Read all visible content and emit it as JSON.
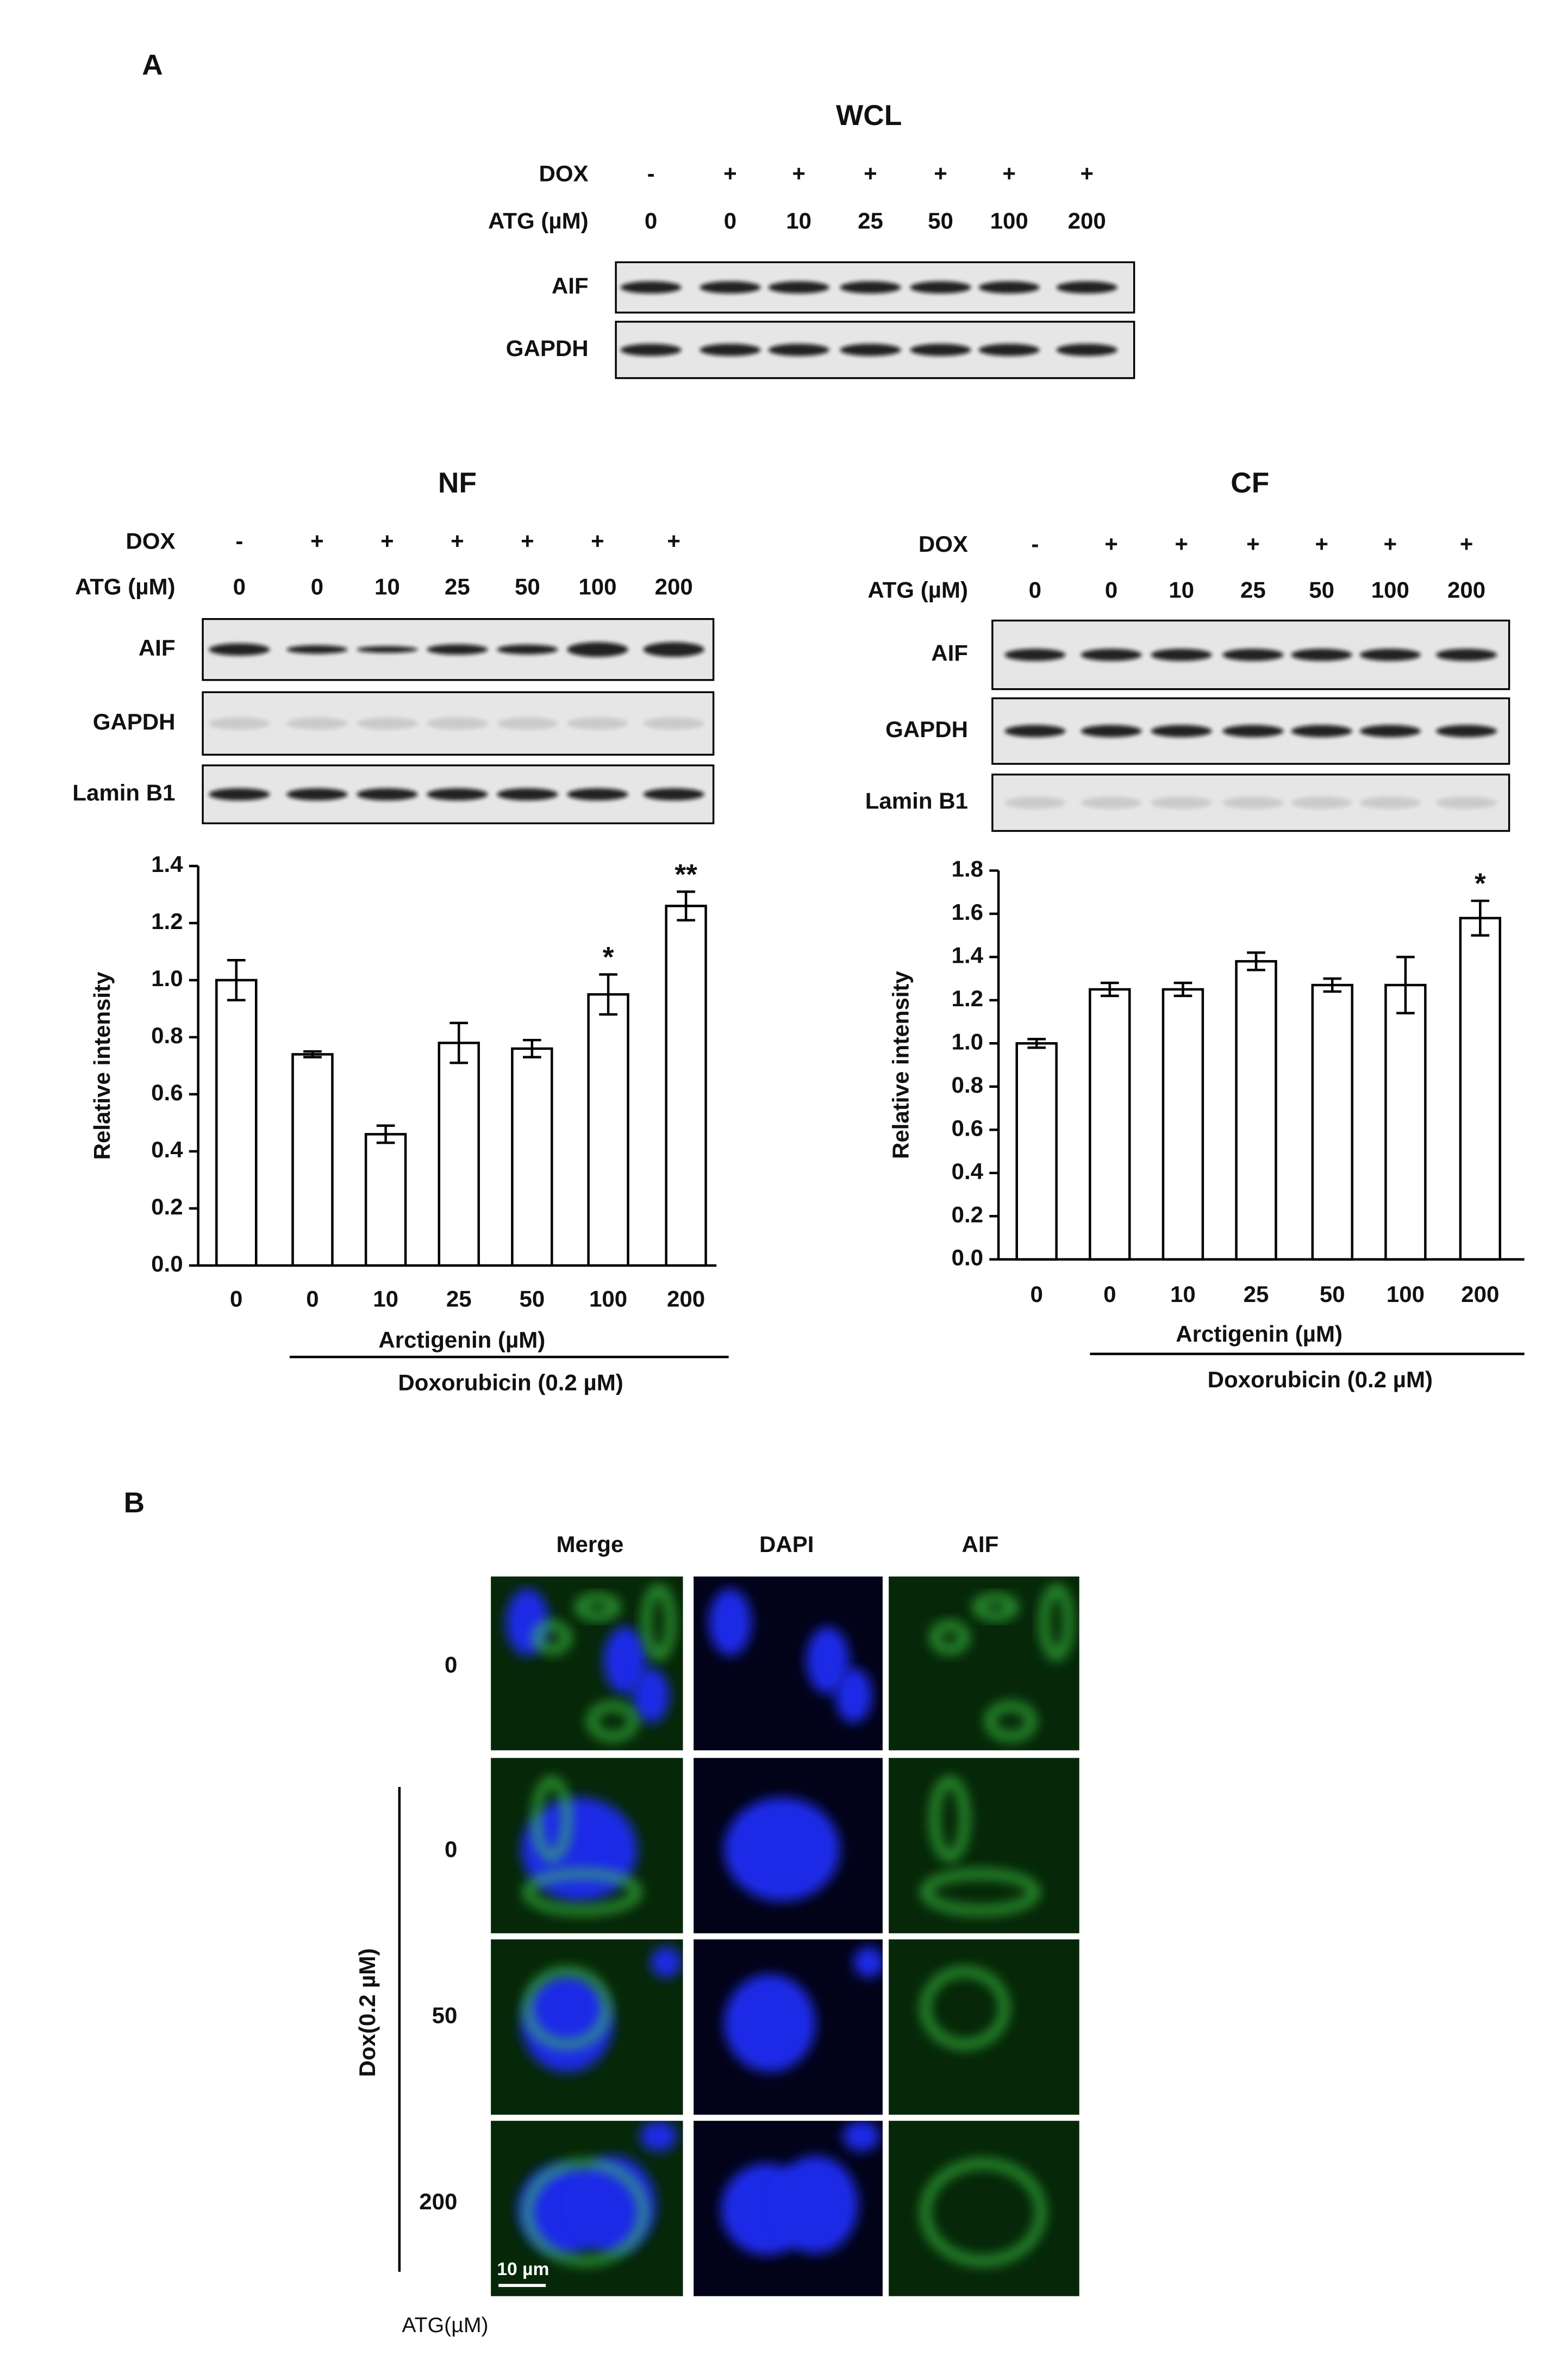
{
  "panel_a": "A",
  "blots": [
    {
      "title": "WCL",
      "dox_label": "DOX",
      "dox": [
        "-",
        "+",
        "+",
        "+",
        "+",
        "+",
        "+"
      ],
      "atg_label": "ATG (µM)",
      "atg": [
        "0",
        "0",
        "10",
        "25",
        "50",
        "100",
        "200"
      ],
      "bands": [
        "AIF",
        "GAPDH"
      ]
    },
    {
      "title": "NF",
      "dox_label": "DOX",
      "dox": [
        "-",
        "+",
        "+",
        "+",
        "+",
        "+",
        "+"
      ],
      "atg_label": "ATG (µM)",
      "atg": [
        "0",
        "0",
        "10",
        "25",
        "50",
        "100",
        "200"
      ],
      "bands": [
        "AIF",
        "GAPDH",
        "Lamin B1"
      ]
    },
    {
      "title": "CF",
      "dox_label": "DOX",
      "dox": [
        "-",
        "+",
        "+",
        "+",
        "+",
        "+",
        "+"
      ],
      "atg_label": "ATG (µM)",
      "atg": [
        "0",
        "0",
        "10",
        "25",
        "50",
        "100",
        "200"
      ],
      "bands": [
        "AIF",
        "GAPDH",
        "Lamin B1"
      ]
    }
  ],
  "chart_data": [
    {
      "type": "bar",
      "y_label": "Relative intensity",
      "x_label": "Arctigenin (µM)",
      "group_label": "Doxorubicin (0.2 µM)",
      "categories": [
        "0",
        "0",
        "10",
        "25",
        "50",
        "100",
        "200"
      ],
      "values": [
        1.0,
        0.74,
        0.46,
        0.78,
        0.76,
        0.95,
        1.26
      ],
      "errors": [
        0.07,
        0.01,
        0.03,
        0.07,
        0.03,
        0.07,
        0.05
      ],
      "value_annotations": [
        null,
        null,
        null,
        null,
        null,
        "*",
        "**"
      ],
      "color": "#ffffff",
      "ylim": [
        0,
        1.4
      ],
      "yticks": [
        {
          "value": 0,
          "label": "0.0"
        },
        0.2,
        0.4,
        0.6,
        0.8,
        {
          "value": 1,
          "label": "1.0"
        },
        1.2,
        1.4
      ]
    },
    {
      "type": "bar",
      "y_label": "Relative intensity",
      "x_label": "Arctigenin (µM)",
      "group_label": "Doxorubicin (0.2 µM)",
      "categories": [
        "0",
        "0",
        "10",
        "25",
        "50",
        "100",
        "200"
      ],
      "values": [
        1.0,
        1.25,
        1.25,
        1.38,
        1.27,
        1.27,
        1.58
      ],
      "errors": [
        0.02,
        0.03,
        0.03,
        0.04,
        0.03,
        0.13,
        0.08
      ],
      "value_annotations": [
        null,
        null,
        null,
        null,
        null,
        null,
        "*"
      ],
      "color": "#ffffff",
      "ylim": [
        0,
        1.8
      ],
      "yticks": [
        {
          "value": 0,
          "label": "0.0"
        },
        0.2,
        0.4,
        0.6,
        0.8,
        {
          "value": 1,
          "label": "1.0"
        },
        1.2,
        1.4,
        1.6,
        1.8
      ]
    }
  ],
  "panel_b": {
    "label": "B",
    "columns": [
      "Merge",
      "DAPI",
      "AIF"
    ],
    "rows": [
      "0",
      "0",
      "50",
      "200"
    ],
    "group_label": "Dox(0.2 µM)",
    "axis_label": "ATG(µM)",
    "scale_bar": "10 µm"
  }
}
